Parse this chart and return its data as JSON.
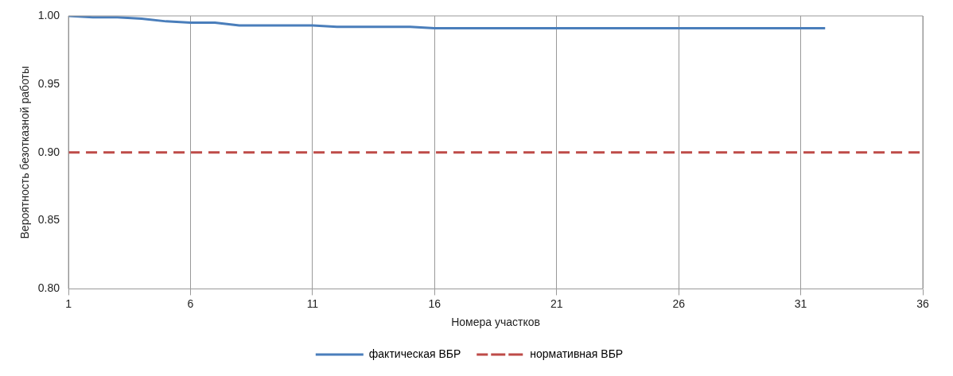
{
  "chart_data": {
    "type": "line",
    "xlabel": "Номера участков",
    "ylabel": "Вероятность безотказной работы",
    "x": [
      1,
      2,
      3,
      4,
      5,
      6,
      7,
      8,
      9,
      10,
      11,
      12,
      13,
      14,
      15,
      16,
      17,
      18,
      19,
      20,
      21,
      22,
      23,
      24,
      25,
      26,
      27,
      28,
      29,
      30,
      31,
      32,
      33,
      34,
      35,
      36
    ],
    "series": [
      {
        "name": "фактическая ВБР",
        "color": "#4a7ebb",
        "line_style": "solid",
        "values": [
          1.0,
          0.999,
          0.999,
          0.998,
          0.996,
          0.995,
          0.995,
          0.993,
          0.993,
          0.993,
          0.993,
          0.992,
          0.992,
          0.992,
          0.992,
          0.991,
          0.991,
          0.991,
          0.991,
          0.991,
          0.991,
          0.991,
          0.991,
          0.991,
          0.991,
          0.991,
          0.991,
          0.991,
          0.991,
          0.991,
          0.991,
          0.991,
          null,
          null,
          null,
          null
        ]
      },
      {
        "name": "нормативная ВБР",
        "color": "#be4b48",
        "line_style": "dashed",
        "values": [
          0.9,
          0.9,
          0.9,
          0.9,
          0.9,
          0.9,
          0.9,
          0.9,
          0.9,
          0.9,
          0.9,
          0.9,
          0.9,
          0.9,
          0.9,
          0.9,
          0.9,
          0.9,
          0.9,
          0.9,
          0.9,
          0.9,
          0.9,
          0.9,
          0.9,
          0.9,
          0.9,
          0.9,
          0.9,
          0.9,
          0.9,
          0.9,
          0.9,
          0.9,
          0.9,
          0.9
        ]
      }
    ],
    "xlim": [
      1,
      36
    ],
    "xticks": [
      1,
      6,
      11,
      16,
      21,
      26,
      31,
      36
    ],
    "ylim": [
      0.8,
      1.0
    ],
    "yticks": [
      {
        "value": 0.8,
        "label": "0.80"
      },
      {
        "value": 0.85,
        "label": "0.85"
      },
      {
        "value": 0.9,
        "label": "0.90"
      },
      {
        "value": 0.95,
        "label": "0.95"
      },
      {
        "value": 1.0,
        "label": "1.00"
      }
    ],
    "grid": "x",
    "legend": "bottom",
    "marker": "none"
  }
}
